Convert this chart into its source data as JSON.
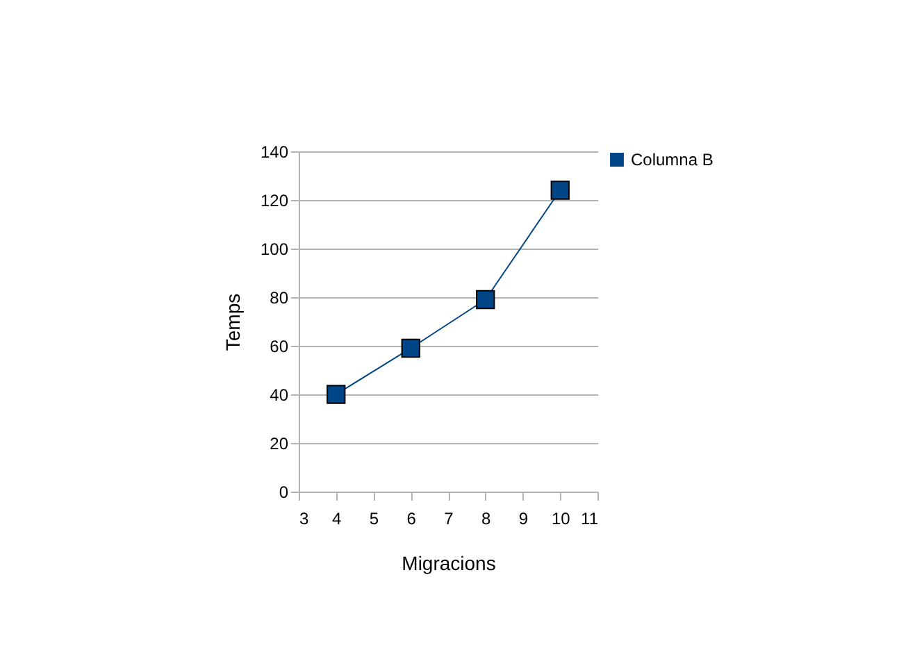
{
  "chart_data": {
    "type": "line",
    "xlabel": "Migracions",
    "ylabel": "Temps",
    "x": [
      4,
      6,
      8,
      10
    ],
    "series": [
      {
        "name": "Columna B",
        "color": "#004586",
        "values": [
          40,
          59,
          79,
          124
        ]
      }
    ],
    "xlim": [
      3,
      11
    ],
    "xticks": [
      3,
      4,
      5,
      6,
      7,
      8,
      9,
      10,
      11
    ],
    "ylim": [
      0,
      140
    ],
    "yticks": [
      0,
      20,
      40,
      60,
      80,
      100,
      120,
      140
    ],
    "grid": "y",
    "legend": "right",
    "marker": "square",
    "line_style": "solid"
  }
}
